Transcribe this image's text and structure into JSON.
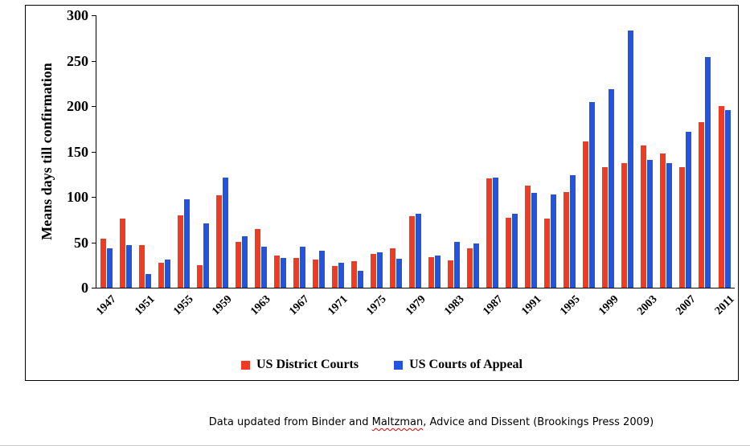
{
  "chart_data": {
    "type": "bar",
    "title": "",
    "ylabel": "Means days till confirmation",
    "xlabel": "",
    "ylim": [
      0,
      300
    ],
    "yticks": [
      0,
      50,
      100,
      150,
      200,
      250,
      300
    ],
    "grid": false,
    "legend_position": "bottom",
    "categories": [
      1947,
      1949,
      1951,
      1953,
      1955,
      1957,
      1959,
      1961,
      1963,
      1965,
      1967,
      1969,
      1971,
      1973,
      1975,
      1977,
      1979,
      1981,
      1983,
      1985,
      1987,
      1989,
      1991,
      1993,
      1995,
      1997,
      1999,
      2001,
      2003,
      2005,
      2007,
      2009,
      2011
    ],
    "xtick_labels": [
      "1947",
      "1951",
      "1955",
      "1959",
      "1963",
      "1967",
      "1971",
      "1975",
      "1979",
      "1983",
      "1987",
      "1991",
      "1995",
      "1999",
      "2003",
      "2007",
      "2011"
    ],
    "series": [
      {
        "name": "US District Courts",
        "color": "#EE3B22",
        "values": [
          54,
          76,
          47,
          27,
          80,
          25,
          102,
          50,
          65,
          35,
          33,
          31,
          24,
          29,
          37,
          43,
          79,
          34,
          30,
          43,
          120,
          77,
          112,
          76,
          105,
          161,
          133,
          137,
          157,
          148,
          133,
          182,
          200
        ]
      },
      {
        "name": "US Courts of Appeal",
        "color": "#2454DC",
        "values": [
          43,
          47,
          15,
          31,
          97,
          71,
          121,
          57,
          45,
          33,
          45,
          41,
          27,
          19,
          39,
          32,
          81,
          35,
          50,
          49,
          121,
          81,
          104,
          103,
          124,
          204,
          219,
          283,
          141,
          137,
          172,
          254,
          196
        ]
      }
    ]
  },
  "caption": {
    "pre": "Data updated from Binder and ",
    "flagged": "Maltzman",
    "post": ", Advice and Dissent (Brookings Press 2009)"
  }
}
